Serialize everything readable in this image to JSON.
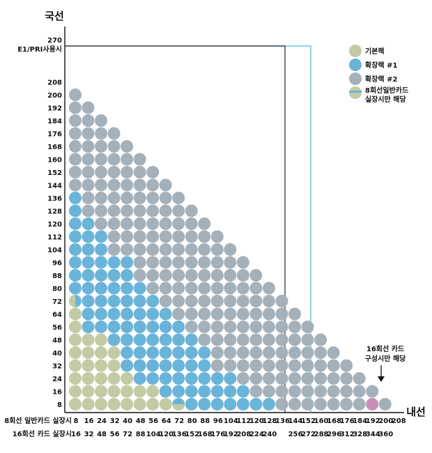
{
  "chart_data": {
    "type": "scatter",
    "title": "",
    "ylabel": "국선",
    "xlabel": "내선",
    "colors": {
      "basic": "#c3cba4",
      "expansion1": "#6ab4d9",
      "expansion2": "#a4b1bb",
      "special": "#c98fb8",
      "line_dark": "#222222",
      "line_blue": "#4ab3dd",
      "highlight_text": "#2a86c4"
    },
    "y_ticks": [
      "8",
      "16",
      "24",
      "32",
      "40",
      "48",
      "56",
      "64",
      "72",
      "80",
      "88",
      "96",
      "104",
      "112",
      "120",
      "128",
      "136",
      "144",
      "152",
      "160",
      "168",
      "176",
      "184",
      "192",
      "200",
      "208"
    ],
    "y_top_value": "270",
    "y_top_label": "E1/PRI사용시",
    "x_row1_label": "8회선 일반카드 실장시",
    "x_row1_ticks": [
      "8",
      "16",
      "24",
      "32",
      "40",
      "48",
      "56",
      "64",
      "72",
      "80",
      "88",
      "96",
      "104",
      "112",
      "120",
      "128",
      "136",
      "144",
      "152",
      "160",
      "168",
      "176",
      "184",
      "192",
      "200",
      "208"
    ],
    "x_row2_label": "16회선 카드 실장시",
    "x_row2_ticks": [
      "16",
      "32",
      "48",
      "56",
      "72",
      "88",
      "104",
      "120",
      "136",
      "152",
      "168",
      "176",
      "192",
      "208",
      "224",
      "240",
      "",
      "256",
      "272",
      "288",
      "296",
      "312",
      "328",
      "344",
      "360",
      ""
    ],
    "x_row2_highlight_index": 18,
    "grid_rule": "circle at column x (8..200 step 8) exists for row y where x + y <= 208",
    "basic_zone": "columns 8-32 up to rows 64/48/48/40, columns 40-56 up to row 24/16/16, column 64 row 8, column 72 row 8 lower half",
    "expansion1_zone": "columns 8-128 within band bounded by basic zone below and diagonal boundary above (column 8 up to row 136)",
    "expansion2_zone": "remaining circles",
    "special_point": {
      "x": 192,
      "y": 8,
      "label_line1": "16회선 카드",
      "label_line2": "구성시만 해당"
    },
    "boundary_dark": {
      "x_max": 136,
      "y_max": 270
    },
    "boundary_blue": {
      "x_max": 152,
      "y_max": 270
    },
    "legend": [
      {
        "key": "basic",
        "label": "기본랙"
      },
      {
        "key": "expansion1",
        "label": "확장랙 #1"
      },
      {
        "key": "expansion2",
        "label": "확장랙 #2"
      },
      {
        "key": "mixed",
        "label": "8회선일반카드",
        "label2": "실장시만 해당"
      }
    ]
  }
}
